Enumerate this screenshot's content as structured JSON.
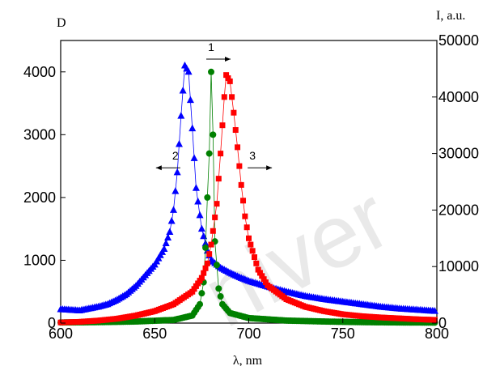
{
  "chart_data": {
    "type": "scatter",
    "xlabel": "λ, nm",
    "ylabel_left": "D",
    "ylabel_right": "I, a.u.",
    "xlim": [
      600,
      800
    ],
    "ylim_left": [
      0,
      4500
    ],
    "ylim_right": [
      0,
      50000
    ],
    "x_ticks": [
      600,
      650,
      700,
      750,
      800
    ],
    "y_left_ticks": [
      0,
      1000,
      2000,
      3000,
      4000
    ],
    "y_right_ticks": [
      0,
      10000,
      20000,
      30000,
      40000,
      50000
    ],
    "grid": false,
    "legend": "none",
    "annotations": [
      {
        "label": "1",
        "x": 680,
        "y": 4280,
        "arrow": "right"
      },
      {
        "label": "2",
        "x": 661,
        "y": 2550,
        "arrow": "left"
      },
      {
        "label": "3",
        "x": 702,
        "y": 2550,
        "arrow": "right"
      }
    ],
    "series": [
      {
        "marker": "triangle",
        "color": "#0000ff",
        "axis": "left",
        "points": [
          [
            600,
            220
          ],
          [
            605,
            210
          ],
          [
            610,
            200
          ],
          [
            615,
            230
          ],
          [
            620,
            260
          ],
          [
            625,
            300
          ],
          [
            630,
            370
          ],
          [
            635,
            460
          ],
          [
            640,
            590
          ],
          [
            645,
            760
          ],
          [
            650,
            930
          ],
          [
            655,
            1180
          ],
          [
            658,
            1450
          ],
          [
            660,
            1800
          ],
          [
            662,
            2400
          ],
          [
            664,
            3300
          ],
          [
            666,
            4100
          ],
          [
            668,
            4000
          ],
          [
            670,
            3100
          ],
          [
            672,
            2150
          ],
          [
            675,
            1500
          ],
          [
            678,
            1150
          ],
          [
            680,
            1000
          ],
          [
            685,
            880
          ],
          [
            690,
            800
          ],
          [
            695,
            730
          ],
          [
            700,
            670
          ],
          [
            710,
            580
          ],
          [
            720,
            500
          ],
          [
            730,
            430
          ],
          [
            740,
            380
          ],
          [
            750,
            340
          ],
          [
            760,
            300
          ],
          [
            770,
            260
          ],
          [
            780,
            230
          ],
          [
            790,
            210
          ],
          [
            800,
            190
          ]
        ]
      },
      {
        "marker": "circle",
        "color": "#008000",
        "axis": "left",
        "points": [
          [
            600,
            10
          ],
          [
            620,
            15
          ],
          [
            640,
            25
          ],
          [
            660,
            50
          ],
          [
            670,
            120
          ],
          [
            674,
            300
          ],
          [
            676,
            650
          ],
          [
            677,
            1200
          ],
          [
            678,
            2000
          ],
          [
            679,
            2700
          ],
          [
            680,
            4000
          ],
          [
            681,
            3000
          ],
          [
            682,
            1300
          ],
          [
            684,
            550
          ],
          [
            686,
            300
          ],
          [
            690,
            160
          ],
          [
            700,
            80
          ],
          [
            720,
            40
          ],
          [
            740,
            25
          ],
          [
            760,
            15
          ],
          [
            780,
            10
          ],
          [
            800,
            8
          ]
        ]
      },
      {
        "marker": "square",
        "color": "#ff0000",
        "axis": "left",
        "points": [
          [
            600,
            10
          ],
          [
            610,
            20
          ],
          [
            620,
            40
          ],
          [
            630,
            70
          ],
          [
            640,
            120
          ],
          [
            650,
            190
          ],
          [
            660,
            300
          ],
          [
            670,
            500
          ],
          [
            675,
            720
          ],
          [
            678,
            950
          ],
          [
            680,
            1250
          ],
          [
            683,
            1900
          ],
          [
            685,
            2700
          ],
          [
            687,
            3600
          ],
          [
            688,
            3950
          ],
          [
            690,
            3850
          ],
          [
            692,
            3350
          ],
          [
            694,
            2800
          ],
          [
            696,
            2200
          ],
          [
            698,
            1700
          ],
          [
            700,
            1350
          ],
          [
            705,
            850
          ],
          [
            710,
            600
          ],
          [
            720,
            380
          ],
          [
            730,
            260
          ],
          [
            740,
            190
          ],
          [
            750,
            140
          ],
          [
            760,
            110
          ],
          [
            770,
            90
          ],
          [
            780,
            75
          ],
          [
            790,
            60
          ],
          [
            800,
            50
          ]
        ]
      }
    ]
  },
  "watermark": "niver"
}
